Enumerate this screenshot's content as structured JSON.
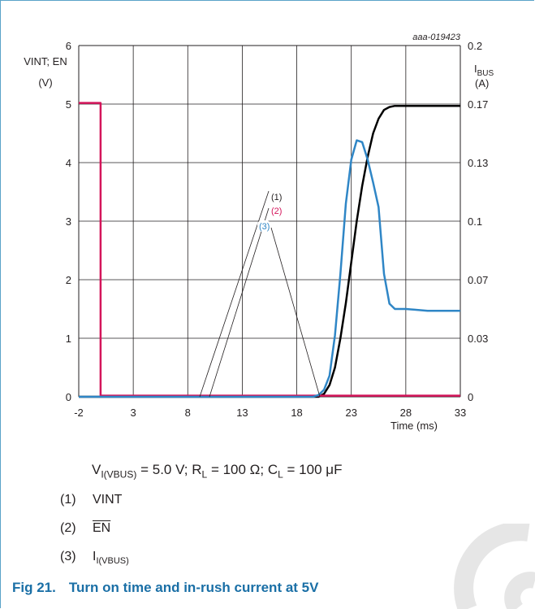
{
  "chart_data": {
    "type": "line",
    "figure_code": "aaa-019423",
    "left_axis": {
      "label_lines": [
        "VINT; EN",
        "(V)"
      ],
      "ylim": [
        0,
        6
      ],
      "ticks": [
        "0",
        "1",
        "2",
        "3",
        "4",
        "5",
        "6"
      ]
    },
    "right_axis": {
      "label_main": "I",
      "label_sub": "BUS",
      "label_unit": "(A)",
      "ylim": [
        0,
        0.2
      ],
      "ticks": [
        "0",
        "0.03",
        "0.07",
        "0.1",
        "0.13",
        "0.17",
        "0.2"
      ]
    },
    "x_axis": {
      "label": "Time (ms)",
      "xlim": [
        -2,
        33
      ],
      "ticks": [
        "-2",
        "3",
        "8",
        "13",
        "18",
        "23",
        "28",
        "33"
      ]
    },
    "grid": true,
    "series": [
      {
        "key": "vint",
        "marker": "(1)",
        "color": "#000000",
        "axis": "left",
        "points": [
          [
            -2,
            0
          ],
          [
            20,
            0
          ],
          [
            20.5,
            0.05
          ],
          [
            21,
            0.2
          ],
          [
            21.5,
            0.5
          ],
          [
            22,
            1.0
          ],
          [
            22.5,
            1.6
          ],
          [
            23,
            2.3
          ],
          [
            23.5,
            3.0
          ],
          [
            24,
            3.6
          ],
          [
            24.5,
            4.1
          ],
          [
            25,
            4.5
          ],
          [
            25.5,
            4.75
          ],
          [
            26,
            4.9
          ],
          [
            26.5,
            4.95
          ],
          [
            27,
            4.97
          ],
          [
            28,
            4.97
          ],
          [
            33,
            4.97
          ]
        ]
      },
      {
        "key": "en",
        "marker": "(2)",
        "color": "#d4145a",
        "axis": "left",
        "points": [
          [
            -2,
            5.02
          ],
          [
            0,
            5.02
          ],
          [
            0,
            0.02
          ],
          [
            33,
            0.02
          ]
        ]
      },
      {
        "key": "ibus",
        "marker": "(3)",
        "color": "#2f86c6",
        "axis": "right",
        "points": [
          [
            -2,
            0
          ],
          [
            19.5,
            0
          ],
          [
            20,
            0.001
          ],
          [
            20.5,
            0.004
          ],
          [
            21,
            0.012
          ],
          [
            21.5,
            0.035
          ],
          [
            22,
            0.07
          ],
          [
            22.5,
            0.11
          ],
          [
            23,
            0.135
          ],
          [
            23.5,
            0.146
          ],
          [
            24,
            0.145
          ],
          [
            24.5,
            0.135
          ],
          [
            25,
            0.122
          ],
          [
            25.5,
            0.108
          ],
          [
            26,
            0.07
          ],
          [
            26.5,
            0.053
          ],
          [
            27,
            0.05
          ],
          [
            28,
            0.05
          ],
          [
            30,
            0.049
          ],
          [
            33,
            0.049
          ]
        ]
      }
    ],
    "annotations": [
      {
        "label": "(1)",
        "color": "#231f20"
      },
      {
        "label": "(2)",
        "color": "#d4145a"
      },
      {
        "label": "(3)",
        "color": "#2f86c6"
      }
    ]
  },
  "note": {
    "v_main": "V",
    "v_sub": "I(VBUS)",
    "v_rest": " = 5.0 V; R",
    "r_sub": "L",
    "r_rest": " = 100 Ω; C",
    "c_sub": "L",
    "c_rest": " = 100 μF"
  },
  "legend": [
    {
      "num": "(1)",
      "text": "VINT"
    },
    {
      "num": "(2)",
      "text": "EN"
    },
    {
      "num": "(3)",
      "text_main": "I",
      "text_sub": "I(VBUS)"
    }
  ],
  "caption": {
    "label": "Fig 21.",
    "title": "Turn on time and in-rush current at 5V"
  },
  "colors": {
    "frame": "#5aa3c8",
    "caption": "#1a6fa6",
    "watermark": "#e6e6e6"
  }
}
